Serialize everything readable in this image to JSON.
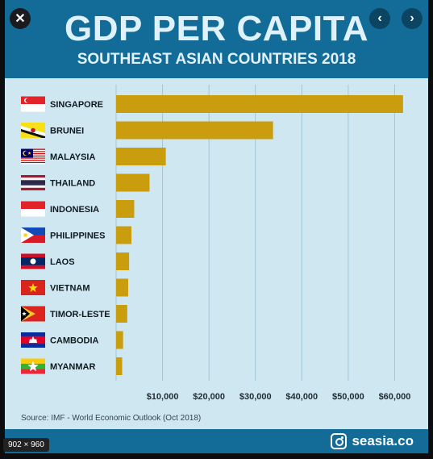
{
  "viewer": {
    "image_size": "902 × 960",
    "close_icon": "close-icon",
    "prev_icon": "chevron-left-icon",
    "next_icon": "chevron-right-icon"
  },
  "poster": {
    "title": "GDP PER CAPITA",
    "subtitle": "SOUTHEAST ASIAN COUNTRIES 2018",
    "source": "Source: IMF - World Economic Outlook (Oct 2018)",
    "brand": "seasia.co",
    "brand_icon": "instagram-icon",
    "colors": {
      "header": "#136b97",
      "background": "#cfe7f1",
      "bar": "#c99d0e",
      "grid": "#9fc8d8"
    }
  },
  "chart_data": {
    "type": "bar",
    "orientation": "horizontal",
    "categories": [
      "SINGAPORE",
      "BRUNEI",
      "MALAYSIA",
      "THAILAND",
      "INDONESIA",
      "PHILIPPINES",
      "LAOS",
      "VIETNAM",
      "TIMOR-LESTE",
      "CAMBODIA",
      "MYANMAR"
    ],
    "values": [
      61800,
      33800,
      10700,
      7200,
      3900,
      3300,
      2800,
      2600,
      2400,
      1500,
      1300
    ],
    "flags": [
      "singapore-flag-icon",
      "brunei-flag-icon",
      "malaysia-flag-icon",
      "thailand-flag-icon",
      "indonesia-flag-icon",
      "philippines-flag-icon",
      "laos-flag-icon",
      "vietnam-flag-icon",
      "timor-leste-flag-icon",
      "cambodia-flag-icon",
      "myanmar-flag-icon"
    ],
    "x_ticks": [
      "$10,000",
      "$20,000",
      "$30,000",
      "$40,000",
      "$50,000",
      "$60,000"
    ],
    "x_tick_values": [
      10000,
      20000,
      30000,
      40000,
      50000,
      60000
    ],
    "xlim": [
      0,
      66000
    ],
    "grid": true,
    "legend": false
  }
}
